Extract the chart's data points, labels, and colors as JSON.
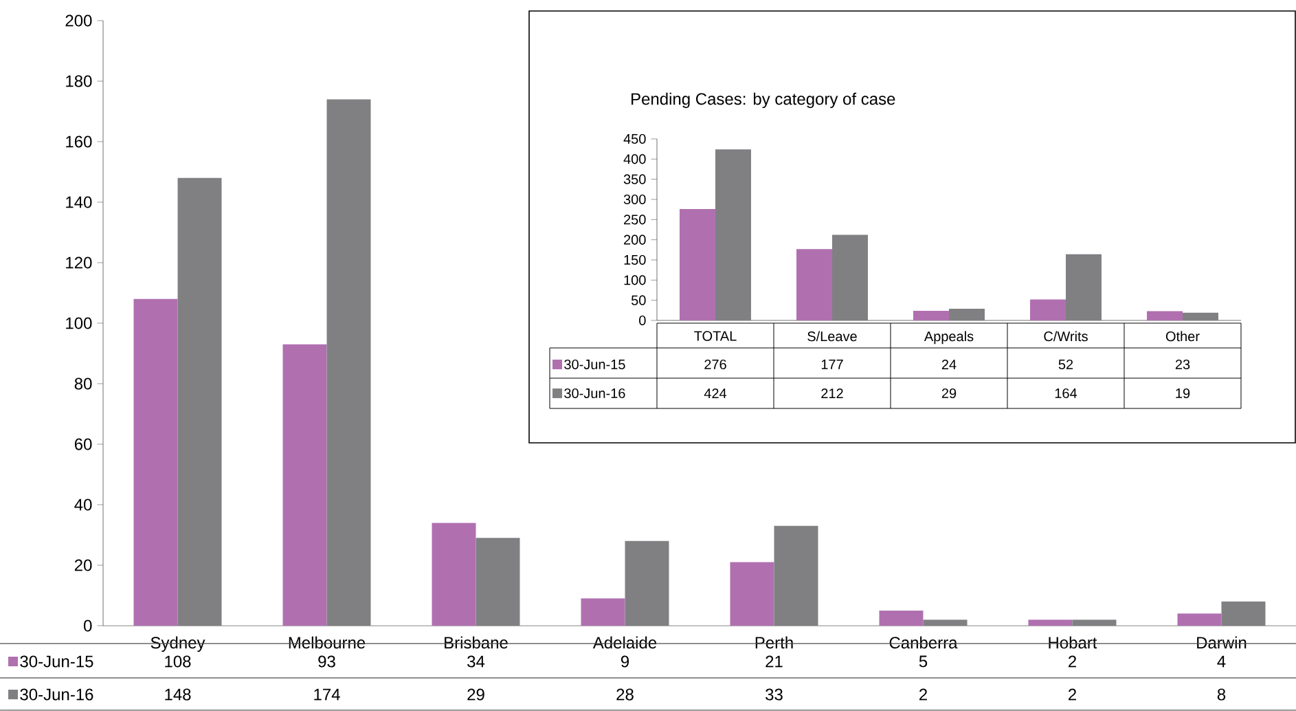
{
  "chart_data": [
    {
      "type": "bar",
      "categories": [
        "Sydney",
        "Melbourne",
        "Brisbane",
        "Adelaide",
        "Perth",
        "Canberra",
        "Hobart",
        "Darwin"
      ],
      "series": [
        {
          "name": "30-Jun-15",
          "color": "#b070b0",
          "values": [
            108,
            93,
            34,
            9,
            21,
            5,
            2,
            4
          ]
        },
        {
          "name": "30-Jun-16",
          "color": "#808083",
          "values": [
            148,
            174,
            29,
            28,
            33,
            2,
            2,
            8
          ]
        }
      ],
      "ylim": [
        0,
        200
      ],
      "yticks": [
        0,
        20,
        40,
        60,
        80,
        100,
        120,
        140,
        160,
        180,
        200
      ],
      "data_labels": true,
      "legend": "bottom left"
    },
    {
      "type": "bar",
      "title": "Pending Cases: by category of case",
      "categories": [
        "TOTAL",
        "S/Leave",
        "Appeals",
        "C/Writs",
        "Other"
      ],
      "series": [
        {
          "name": "30-Jun-15",
          "color": "#b070b0",
          "values": [
            276,
            177,
            24,
            52,
            23
          ]
        },
        {
          "name": "30-Jun-16",
          "color": "#808083",
          "values": [
            424,
            212,
            29,
            164,
            19
          ]
        }
      ],
      "ylim": [
        0,
        450
      ],
      "yticks": [
        0,
        50,
        100,
        150,
        200,
        250,
        300,
        350,
        400,
        450
      ],
      "data_labels": true,
      "legend": "bottom left"
    }
  ]
}
